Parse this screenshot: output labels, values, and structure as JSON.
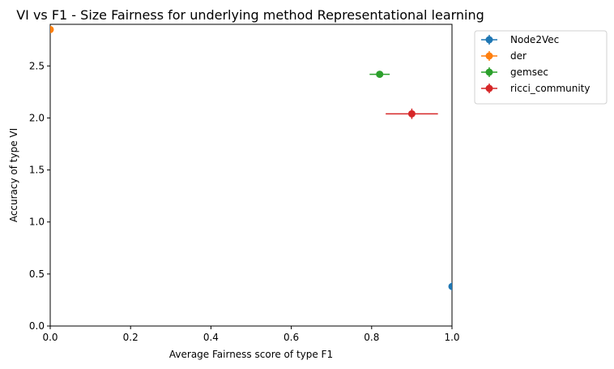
{
  "chart_data": {
    "type": "scatter",
    "title": "VI vs F1 - Size Fairness for underlying method Representational learning",
    "xlabel": "Average Fairness score of type F1",
    "ylabel": "Accuracy of type VI",
    "xlim": [
      0.0,
      1.0
    ],
    "ylim": [
      0.0,
      2.9
    ],
    "xticks": [
      "0.0",
      "0.2",
      "0.4",
      "0.6",
      "0.8",
      "1.0"
    ],
    "yticks": [
      "0.0",
      "0.5",
      "1.0",
      "1.5",
      "2.0",
      "2.5"
    ],
    "grid": false,
    "legend_position": "outside-top-right",
    "series": [
      {
        "name": "Node2Vec",
        "color": "#1f77b4",
        "x": 1.0,
        "y": 0.38,
        "xerr": 0.0,
        "yerr": 0.04
      },
      {
        "name": "der",
        "color": "#ff7f0e",
        "x": 0.0,
        "y": 2.85,
        "xerr": 0.0,
        "yerr": 0.0
      },
      {
        "name": "gemsec",
        "color": "#2ca02c",
        "x": 0.82,
        "y": 2.42,
        "xerr": 0.025,
        "yerr": 0.015
      },
      {
        "name": "ricci_community",
        "color": "#d62728",
        "x": 0.9,
        "y": 2.04,
        "xerr": 0.065,
        "yerr": 0.05
      }
    ]
  }
}
